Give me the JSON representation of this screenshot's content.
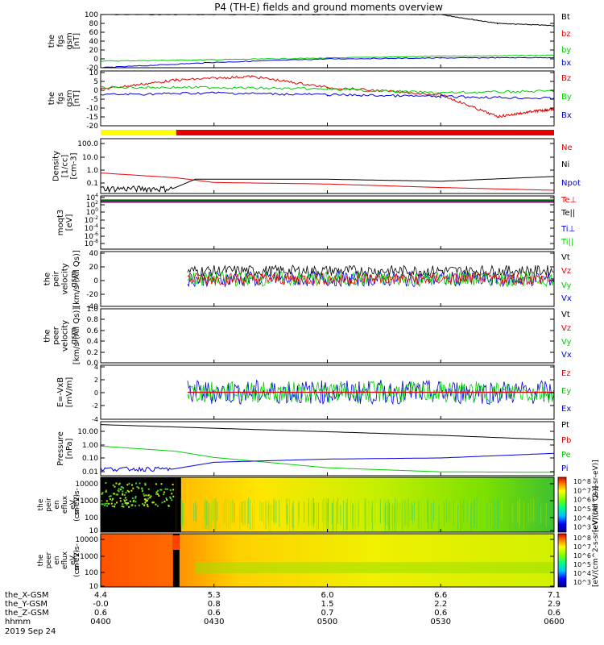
{
  "title": "P4 (TH-E) fields and ground moments overview",
  "colors": {
    "black": "#000000",
    "red": "#e60000",
    "green": "#00d000",
    "blue": "#0000e0",
    "yellow": "#ffff00"
  },
  "chart_data": [
    {
      "type": "line",
      "ylabel": [
        "the",
        "fgs",
        "gsm",
        "[nT]"
      ],
      "ylim": [
        -20,
        100
      ],
      "ticks": [
        "100",
        "80",
        "60",
        "40",
        "20",
        "0",
        "-20"
      ],
      "legend": [
        {
          "name": "Bt",
          "color": "#000000"
        },
        {
          "name": "bz",
          "color": "#e60000"
        },
        {
          "name": "by",
          "color": "#00d000"
        },
        {
          "name": "bx",
          "color": "#0000e0"
        }
      ],
      "series": [
        {
          "name": "Bt",
          "x": [
            "0400",
            "0430",
            "0500",
            "0530",
            "0545",
            "0600"
          ],
          "y": [
            100,
            100,
            100,
            100,
            80,
            75
          ]
        },
        {
          "name": "by",
          "x": [
            "0400",
            "0430",
            "0500",
            "0530",
            "0600"
          ],
          "y": [
            -5,
            -2,
            2,
            6,
            8
          ]
        },
        {
          "name": "bx",
          "x": [
            "0400",
            "0430",
            "0500",
            "0530",
            "0600"
          ],
          "y": [
            -20,
            -8,
            0,
            2,
            3
          ]
        }
      ]
    },
    {
      "type": "line",
      "ylabel": [
        "the",
        "fgs",
        "gsm",
        "[nT]"
      ],
      "ylim": [
        -20,
        10
      ],
      "ticks": [
        "10",
        "5",
        "0",
        "-5",
        "-10",
        "-15",
        "-20"
      ],
      "legend": [
        {
          "name": "Bz",
          "color": "#e60000"
        },
        {
          "name": "By",
          "color": "#00d000"
        },
        {
          "name": "Bx",
          "color": "#0000e0"
        }
      ],
      "series": [
        {
          "name": "Bz",
          "x": [
            "0400",
            "0420",
            "0440",
            "0500",
            "0530",
            "0545",
            "0555",
            "0600"
          ],
          "y": [
            0,
            5,
            7,
            1,
            -3,
            -15,
            -12,
            -11
          ]
        },
        {
          "name": "By",
          "x": [
            "0400",
            "0430",
            "0500",
            "0530",
            "0600"
          ],
          "y": [
            1,
            1,
            0,
            -2,
            -1
          ]
        },
        {
          "name": "Bx",
          "x": [
            "0400",
            "0430",
            "0500",
            "0530",
            "0600"
          ],
          "y": [
            -3,
            -2,
            -3,
            -4,
            -5
          ]
        }
      ]
    },
    {
      "type": "heatmap",
      "title": "mode bar",
      "segments": [
        {
          "from": "0400",
          "to": "0420",
          "color": "#ffff00"
        },
        {
          "from": "0420",
          "to": "0600",
          "color": "#e60000"
        }
      ]
    },
    {
      "type": "line",
      "ylabel": [
        "Density",
        "[1/cc]",
        "[cm-3]"
      ],
      "scale": "log",
      "ylim": [
        0.05,
        150
      ],
      "ticks": [
        "100.0",
        "10.0",
        "1.0",
        "0.1"
      ],
      "legend": [
        {
          "name": "Ne",
          "color": "#e60000"
        },
        {
          "name": "Ni",
          "color": "#000000"
        },
        {
          "name": "Npot",
          "color": "#0000e0"
        }
      ],
      "series": [
        {
          "name": "Ne",
          "x": [
            "0400",
            "0420",
            "0430",
            "0500",
            "0530",
            "0600"
          ],
          "y": [
            1.0,
            0.5,
            0.25,
            0.2,
            0.12,
            0.08
          ]
        },
        {
          "name": "Ni",
          "x": [
            "0400",
            "0419",
            "0425",
            "0500",
            "0530",
            "0600"
          ],
          "y": [
            0.1,
            0.1,
            0.4,
            0.4,
            0.3,
            0.6
          ]
        }
      ]
    },
    {
      "type": "line",
      "ylabel": [
        "moqt3",
        "[eV]"
      ],
      "scale": "log",
      "ticks": [
        "10^4",
        "10^2",
        "10^0",
        "10^-2",
        "10^-4",
        "10^-6",
        "10^-8"
      ],
      "legend": [
        {
          "name": "Te⊥",
          "color": "#e60000"
        },
        {
          "name": "Te||",
          "color": "#000000"
        },
        {
          "name": "Ti⊥",
          "color": "#0000e0"
        },
        {
          "name": "Ti||",
          "color": "#00d000"
        }
      ]
    },
    {
      "type": "line",
      "ylabel": [
        "the",
        "peir",
        "velocity",
        "gsm",
        "[km/s (All Qs)]"
      ],
      "ylim": [
        -40,
        40
      ],
      "ticks": [
        "40",
        "20",
        "0",
        "-20",
        "-40"
      ],
      "legend": [
        {
          "name": "Vt",
          "color": "#000000"
        },
        {
          "name": "Vz",
          "color": "#e60000"
        },
        {
          "name": "Vy",
          "color": "#00d000"
        },
        {
          "name": "Vx",
          "color": "#0000e0"
        }
      ]
    },
    {
      "type": "line",
      "ylabel": [
        "the",
        "peer",
        "velocity",
        "gsm",
        "[km/s (All Qs)]"
      ],
      "ylim": [
        0,
        1
      ],
      "ticks": [
        "1.0",
        "0.8",
        "0.6",
        "0.4",
        "0.2",
        "0.0"
      ],
      "legend": [
        {
          "name": "Vt",
          "color": "#000000"
        },
        {
          "name": "Vz",
          "color": "#e60000"
        },
        {
          "name": "Vy",
          "color": "#00d000"
        },
        {
          "name": "Vx",
          "color": "#0000e0"
        }
      ]
    },
    {
      "type": "line",
      "ylabel": [
        "E=-VxB",
        "[mV/m]"
      ],
      "ylim": [
        -4,
        4
      ],
      "ticks": [
        "4",
        "2",
        "0",
        "-2",
        "-4"
      ],
      "legend": [
        {
          "name": "Ez",
          "color": "#e60000"
        },
        {
          "name": "Ey",
          "color": "#00d000"
        },
        {
          "name": "Ex",
          "color": "#0000e0"
        }
      ]
    },
    {
      "type": "line",
      "ylabel": [
        "Pressure",
        "[nPa]"
      ],
      "scale": "log",
      "ylim": [
        0.007,
        40
      ],
      "ticks": [
        "10.00",
        "1.00",
        "0.10",
        "0.01"
      ],
      "legend": [
        {
          "name": "Pt",
          "color": "#000000"
        },
        {
          "name": "Pb",
          "color": "#e60000"
        },
        {
          "name": "Pe",
          "color": "#00d000"
        },
        {
          "name": "Pi",
          "color": "#0000e0"
        }
      ],
      "series": [
        {
          "name": "Pt",
          "x": [
            "0400",
            "0430",
            "0500",
            "0530",
            "0600"
          ],
          "y": [
            25,
            14,
            8,
            4.5,
            2.2
          ]
        },
        {
          "name": "Pe",
          "x": [
            "0400",
            "0420",
            "0430",
            "0500",
            "0530",
            "0600"
          ],
          "y": [
            0.8,
            0.35,
            0.13,
            0.025,
            0.013,
            0.012
          ]
        },
        {
          "name": "Pi",
          "x": [
            "0400",
            "0419",
            "0430",
            "0500",
            "0530",
            "0600"
          ],
          "y": [
            0.02,
            0.02,
            0.06,
            0.1,
            0.12,
            0.25
          ]
        }
      ]
    },
    {
      "type": "heatmap",
      "ylabel": [
        "the",
        "peir",
        "en",
        "eflux",
        "eV",
        "(cm^2-s-",
        "sr-eV)"
      ],
      "scale": "log",
      "ticks": [
        "10000",
        "1000",
        "100",
        "10"
      ],
      "colorbar": [
        "10^8",
        "10^7",
        "10^6",
        "10^5",
        "10^4",
        "10^3"
      ],
      "colorbar_label": "[eV/(cm^2-s-sr-eV)]"
    },
    {
      "type": "heatmap",
      "ylabel": [
        "the",
        "peer",
        "en",
        "eflux",
        "eV",
        "(cm^2-s-",
        "sr-eV)"
      ],
      "scale": "log",
      "ticks": [
        "10000",
        "1000",
        "100",
        "10"
      ],
      "colorbar": [
        "10^8",
        "10^7",
        "10^6",
        "10^5",
        "10^4",
        "10^3"
      ],
      "colorbar_label": "[eV/(cm^2-s-sr-eV) (All Qs)]"
    }
  ],
  "footer": {
    "rows": [
      {
        "label": "the_X-GSM",
        "values": [
          "4.4",
          "5.3",
          "6.0",
          "6.6",
          "7.1"
        ]
      },
      {
        "label": "the_Y-GSM",
        "values": [
          "-0.0",
          "0.8",
          "1.5",
          "2.2",
          "2.9"
        ]
      },
      {
        "label": "the_Z-GSM",
        "values": [
          "0.6",
          "0.6",
          "0.7",
          "0.6",
          "0.6"
        ]
      },
      {
        "label": "hhmm",
        "values": [
          "0400",
          "0430",
          "0500",
          "0530",
          "0600"
        ]
      }
    ],
    "date": "2019 Sep 24"
  }
}
